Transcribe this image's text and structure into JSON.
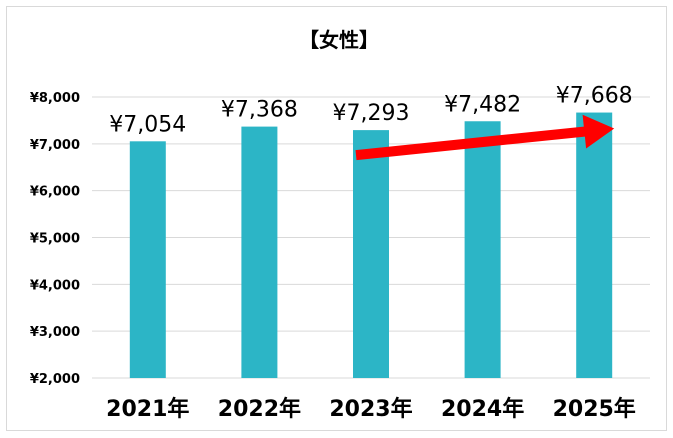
{
  "chart_data": {
    "type": "bar",
    "title": "【女性】",
    "categories": [
      "2021年",
      "2022年",
      "2023年",
      "2024年",
      "2025年"
    ],
    "values": [
      7054,
      7368,
      7293,
      7482,
      7668
    ],
    "value_labels": [
      "¥7,054",
      "¥7,368",
      "¥7,293",
      "¥7,482",
      "¥7,668"
    ],
    "yticks": [
      "¥2,000",
      "¥3,000",
      "¥4,000",
      "¥5,000",
      "¥6,000",
      "¥7,000",
      "¥8,000"
    ],
    "ylim": [
      2000,
      8000
    ],
    "ytick_step": 1000,
    "grid": true,
    "legend": "none",
    "bar_color": "#2cb5c6",
    "arrow": {
      "from_category": "2023年",
      "to_category": "2025年",
      "color": "#ff0000"
    }
  }
}
